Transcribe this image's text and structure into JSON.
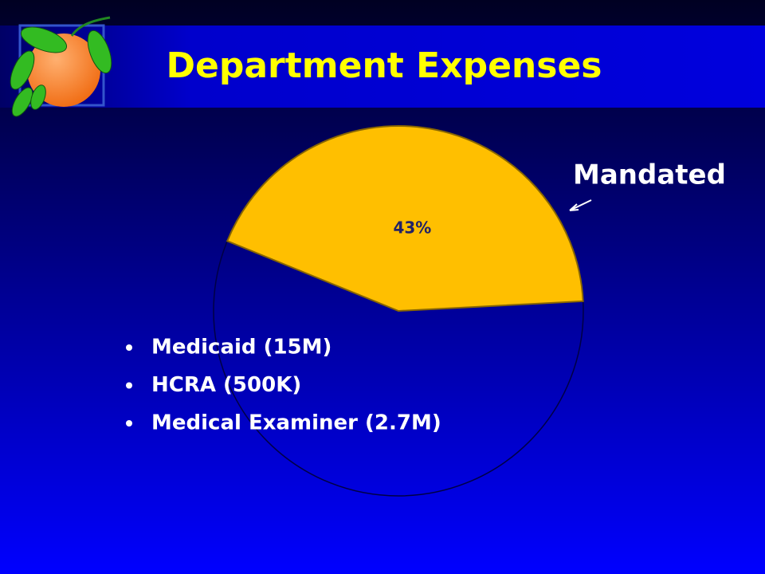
{
  "chart_data": {
    "type": "pie",
    "title": "Department Expenses",
    "values": [
      43
    ],
    "value_labels": [
      "43%"
    ],
    "color": "#ffbf00",
    "annotation": "Mandated"
  },
  "bullets": [
    "Medicaid (15M)",
    "HCRA (500K)",
    "Medical Examiner (2.7M)"
  ]
}
